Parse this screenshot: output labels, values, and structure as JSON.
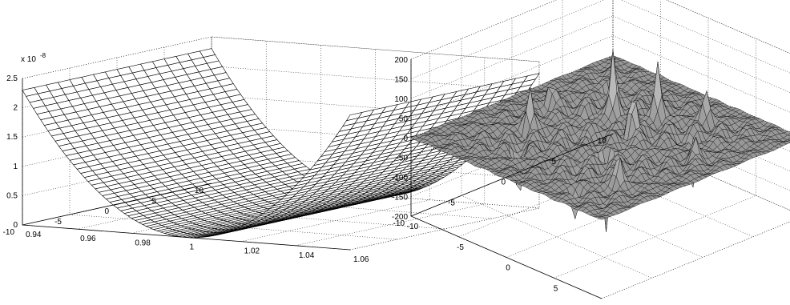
{
  "chart_data": [
    {
      "type": "surface",
      "title": "",
      "xlabel": "",
      "ylabel": "",
      "zlabel": "",
      "x_ticks": [
        "0.94",
        "0.96",
        "0.98",
        "1",
        "1.02",
        "1.04",
        "1.06"
      ],
      "y_ticks": [
        "-10",
        "-5",
        "0",
        "5",
        "10"
      ],
      "z_ticks": [
        "0",
        "0.5",
        "1",
        "1.5",
        "2",
        "2.5"
      ],
      "z_multiplier": "x 10",
      "z_multiplier_exponent": "-8",
      "xlim": [
        0.94,
        1.06
      ],
      "ylim": [
        -10,
        10
      ],
      "zlim": [
        0,
        2.5e-08
      ],
      "grid": true,
      "surface": "parabolic valley along y, minimum at x = 1",
      "colors": {
        "mesh": "#000000",
        "face": "#ffffff"
      }
    },
    {
      "type": "surface",
      "title": "",
      "xlabel": "",
      "ylabel": "",
      "zlabel": "",
      "x_ticks": [
        "-10",
        "-5",
        "0",
        "5",
        "10"
      ],
      "y_ticks": [
        "-10",
        "-5",
        "0",
        "5",
        "10"
      ],
      "z_ticks": [
        "-200",
        "-150",
        "-100",
        "-50",
        "0",
        "50",
        "100",
        "150",
        "200"
      ],
      "xlim": [
        -10,
        10
      ],
      "ylim": [
        -10,
        10
      ],
      "zlim": [
        -200,
        200
      ],
      "grid": true,
      "surface": "oscillatory field with sharp spikes, flat edges near 0",
      "colors": {
        "mesh": "#000000",
        "face": "#b4b4b4"
      }
    }
  ]
}
